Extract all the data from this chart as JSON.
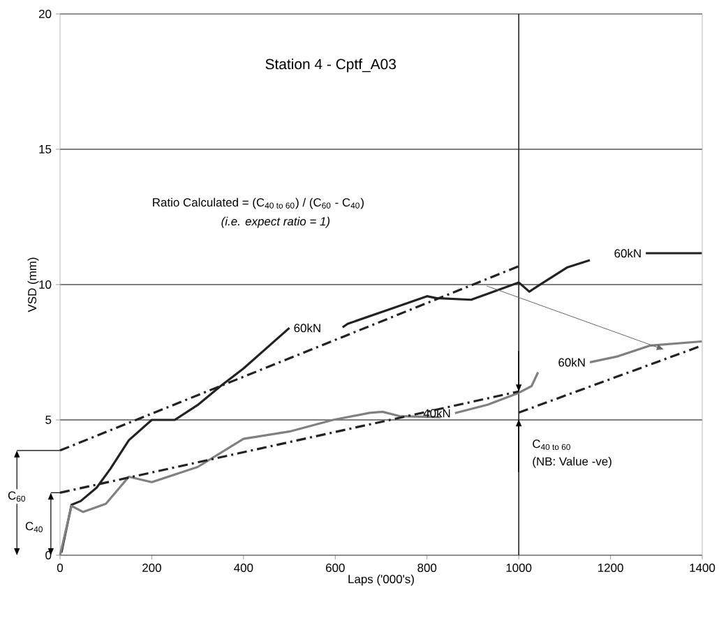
{
  "chart_data": {
    "type": "line",
    "title": "Station 4 - Cptf_A03",
    "xlabel": "Laps ('000's)",
    "ylabel": "VSD (mm)",
    "xlim": [
      0,
      1400
    ],
    "ylim": [
      0,
      20
    ],
    "xticks": [
      0,
      200,
      400,
      600,
      800,
      1000,
      1200,
      1400
    ],
    "yticks": [
      0,
      5,
      10,
      15,
      20
    ],
    "grid": "y",
    "marker": "none",
    "series": [
      {
        "name": "60kN",
        "color": "#222222",
        "line_style": "solid",
        "x": [
          3,
          25,
          45,
          80,
          110,
          150,
          200,
          250,
          300,
          350,
          400,
          450,
          500
        ],
        "values": [
          0.1,
          1.86,
          2.0,
          2.5,
          3.2,
          4.25,
          5.0,
          5.0,
          5.55,
          6.25,
          6.9,
          7.65,
          8.4
        ]
      },
      {
        "color": "#222222",
        "line_style": "solid",
        "x": [
          616,
          627,
          729,
          800,
          820,
          896,
          932,
          1000,
          1023,
          1054,
          1105,
          1155
        ],
        "values": [
          8.42,
          8.55,
          9.15,
          9.57,
          9.5,
          9.44,
          9.66,
          10.08,
          9.74,
          10.08,
          10.63,
          10.9
        ]
      },
      {
        "name": "60kN",
        "color": "#222222",
        "line_style": "solid",
        "x": [
          1277,
          1399
        ],
        "values": [
          11.16,
          11.16
        ]
      },
      {
        "color": "#808080",
        "line_style": "solid",
        "x": [
          0,
          25,
          50,
          100,
          150,
          200,
          300,
          400,
          500,
          595,
          675,
          703,
          740,
          830
        ],
        "values": [
          0,
          1.82,
          1.6,
          1.9,
          2.9,
          2.7,
          3.26,
          4.3,
          4.57,
          5.0,
          5.26,
          5.3,
          5.14,
          5.1
        ]
      },
      {
        "name": "40kN",
        "color": "#808080",
        "line_style": "solid",
        "x": [
          861,
          932,
          1000,
          1028,
          1042
        ],
        "values": [
          5.25,
          5.56,
          6.0,
          6.25,
          6.76
        ]
      },
      {
        "name": "60kN",
        "color": "#808080",
        "line_style": "solid",
        "x": [
          1155,
          1216,
          1287,
          1399
        ],
        "values": [
          7.13,
          7.35,
          7.75,
          7.9
        ]
      },
      {
        "color": "#222222",
        "line_style": "dashdot",
        "x": [
          0,
          1000
        ],
        "values": [
          3.87,
          10.68
        ]
      },
      {
        "color": "#222222",
        "line_style": "dashdot",
        "x": [
          0,
          1000
        ],
        "values": [
          2.31,
          6.05
        ]
      },
      {
        "color": "#222222",
        "line_style": "dashdot",
        "x": [
          1000,
          1400
        ],
        "values": [
          5.27,
          7.75
        ]
      }
    ],
    "ref_lines": [
      {
        "axis": "x",
        "value": 1000,
        "color": "#222222"
      }
    ],
    "annotations": [
      "Ratio Calculated = (C$_{40 to 60}$) / (C$_{60}$ - C$_{40}$)",
      "*(i.e. expect ratio = 1)*",
      "C$_{60}$",
      "C$_{40}$",
      "C$_{40 to 60}$",
      "(NB: Value -ve)"
    ]
  }
}
